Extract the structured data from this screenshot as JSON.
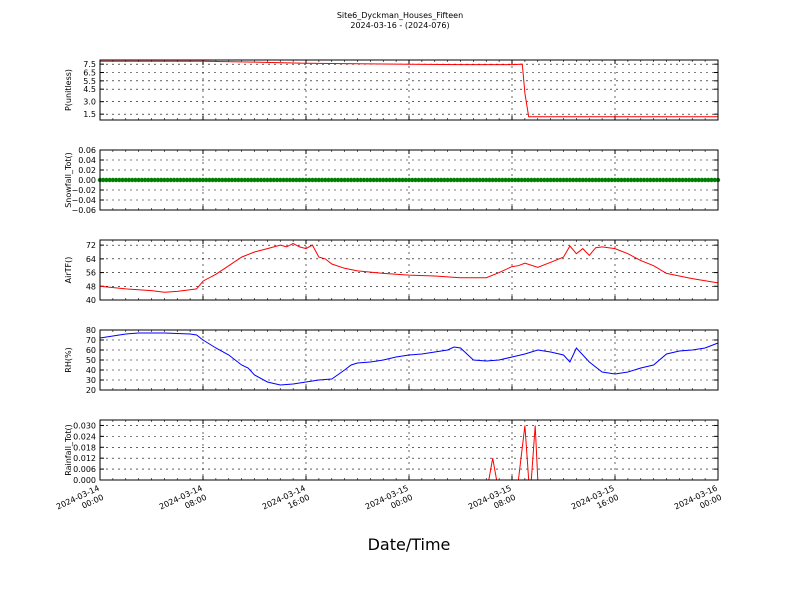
{
  "figure": {
    "title": "Site6_Dyckman_Houses_Fifteen",
    "subtitle": "2024-03-16 - (2024-076)",
    "xlabel": "Date/Time"
  },
  "chart_data": [
    {
      "type": "line",
      "ylabel": "P(unitless)",
      "ylim": [
        0.8,
        8.0
      ],
      "yticks": [
        "7.5",
        "6.5",
        "5.5",
        "4.5",
        "3.0",
        "1.5"
      ],
      "yticks_values": [
        7.5,
        6.5,
        5.5,
        4.5,
        3.0,
        1.5
      ],
      "x_unit": "hours from 2024-03-14 00:00",
      "xlim": [
        0,
        48
      ],
      "xticks": [
        "2024-03-14 00:00",
        "2024-03-14 08:00",
        "2024-03-14 16:00",
        "2024-03-15 00:00",
        "2024-03-15 08:00",
        "2024-03-15 16:00",
        "2024-03-16 00:00"
      ],
      "grid": true,
      "series": [
        {
          "color": "#ff0000",
          "x": [
            0,
            4,
            8,
            12,
            16,
            20,
            24,
            28,
            32,
            32.8,
            33.0,
            33.3,
            36,
            40,
            44,
            48
          ],
          "y": [
            7.85,
            7.85,
            7.85,
            7.75,
            7.6,
            7.55,
            7.5,
            7.45,
            7.45,
            7.5,
            4.0,
            1.2,
            1.2,
            1.2,
            1.2,
            1.2
          ]
        }
      ]
    },
    {
      "type": "scatter",
      "ylabel": "Snowfall_Tot()",
      "ylim": [
        -0.06,
        0.06
      ],
      "yticks": [
        "0.06",
        "0.04",
        "0.02",
        "0.00",
        "−0.02",
        "−0.04",
        "−0.06"
      ],
      "yticks_values": [
        0.06,
        0.04,
        0.02,
        0.0,
        -0.02,
        -0.04,
        -0.06
      ],
      "x_unit": "hours from 2024-03-14 00:00",
      "xlim": [
        0,
        48
      ],
      "grid": true,
      "series": [
        {
          "color": "#008000",
          "x_start": 0,
          "x_end": 48,
          "x_step": 0.25,
          "y": 0
        }
      ]
    },
    {
      "type": "line",
      "ylabel": "AirTF()",
      "ylim": [
        40,
        75
      ],
      "yticks": [
        "72",
        "64",
        "56",
        "48",
        "40"
      ],
      "yticks_values": [
        72,
        64,
        56,
        48,
        40
      ],
      "x_unit": "hours from 2024-03-14 00:00",
      "xlim": [
        0,
        48
      ],
      "grid": true,
      "series": [
        {
          "color": "#ff0000",
          "x": [
            0,
            2,
            4,
            5,
            6,
            7,
            7.5,
            8,
            9,
            10,
            11,
            12,
            13,
            14,
            14.5,
            15,
            15.5,
            16,
            16.5,
            17,
            17.5,
            18,
            19,
            20,
            22,
            24,
            26,
            28,
            30,
            31,
            32,
            32.5,
            33,
            34,
            35,
            36,
            36.5,
            37,
            37.5,
            38,
            38.5,
            39,
            40,
            41,
            42,
            43,
            44,
            46,
            48
          ],
          "y": [
            48,
            46.5,
            45.5,
            44.5,
            45,
            46,
            46.5,
            51,
            55,
            60,
            65,
            68,
            70,
            72,
            71,
            73,
            71,
            70,
            72,
            65,
            64,
            61,
            58.5,
            57,
            55.5,
            54.5,
            54,
            53,
            53,
            56,
            59.5,
            60,
            61.5,
            59,
            62,
            65,
            71.5,
            67,
            70,
            66,
            70.5,
            71,
            70,
            67,
            63,
            60,
            55.5,
            52.5,
            50
          ]
        }
      ]
    },
    {
      "type": "line",
      "ylabel": "RH(%)",
      "ylim": [
        20,
        80
      ],
      "yticks": [
        "80",
        "70",
        "60",
        "50",
        "40",
        "30",
        "20"
      ],
      "yticks_values": [
        80,
        70,
        60,
        50,
        40,
        30,
        20
      ],
      "x_unit": "hours from 2024-03-14 00:00",
      "xlim": [
        0,
        48
      ],
      "grid": true,
      "series": [
        {
          "color": "#0000ff",
          "x": [
            0,
            2,
            3,
            5,
            7,
            7.5,
            8,
            9,
            10,
            11,
            11.5,
            12,
            13,
            14,
            15,
            16,
            17,
            18,
            19,
            19.5,
            20,
            21,
            22,
            23,
            24,
            25,
            26,
            27,
            27.5,
            28,
            29,
            30,
            31,
            32,
            33,
            34,
            35,
            36,
            36.5,
            37,
            38,
            39,
            40,
            41,
            42,
            43,
            44,
            45,
            46,
            47,
            48
          ],
          "y": [
            72,
            76,
            77,
            77,
            76,
            75,
            70,
            62,
            55,
            45,
            42,
            35,
            28,
            25,
            26,
            28,
            30,
            31,
            40,
            45,
            47,
            48,
            50,
            53,
            55,
            56,
            58,
            60,
            63,
            62,
            50,
            49,
            50,
            53,
            56,
            60,
            58,
            55,
            48,
            62,
            48,
            38,
            36,
            38,
            42,
            45,
            56,
            59,
            60,
            62,
            67
          ]
        }
      ]
    },
    {
      "type": "line",
      "ylabel": "Rainfall_Tot()",
      "ylim": [
        0,
        0.033
      ],
      "yticks": [
        "0.030",
        "0.024",
        "0.018",
        "0.012",
        "0.006",
        "0.000"
      ],
      "yticks_values": [
        0.03,
        0.024,
        0.018,
        0.012,
        0.006,
        0.0
      ],
      "x_unit": "hours from 2024-03-14 00:00",
      "xlim": [
        0,
        48
      ],
      "xticks": [
        "2024-03-14 00:00",
        "2024-03-14 08:00",
        "2024-03-14 16:00",
        "2024-03-15 00:00",
        "2024-03-15 08:00",
        "2024-03-15 16:00",
        "2024-03-16 00:00"
      ],
      "grid": true,
      "series": [
        {
          "color": "#ff0000",
          "x": [
            0,
            30.2,
            30.5,
            30.8,
            31.0,
            32.5,
            33.0,
            33.3,
            33.5,
            33.8,
            34.0,
            34.3,
            48
          ],
          "y": [
            0,
            0,
            0.012,
            0,
            0,
            0,
            0.03,
            0,
            0,
            0.03,
            0,
            0,
            0
          ]
        }
      ]
    }
  ]
}
